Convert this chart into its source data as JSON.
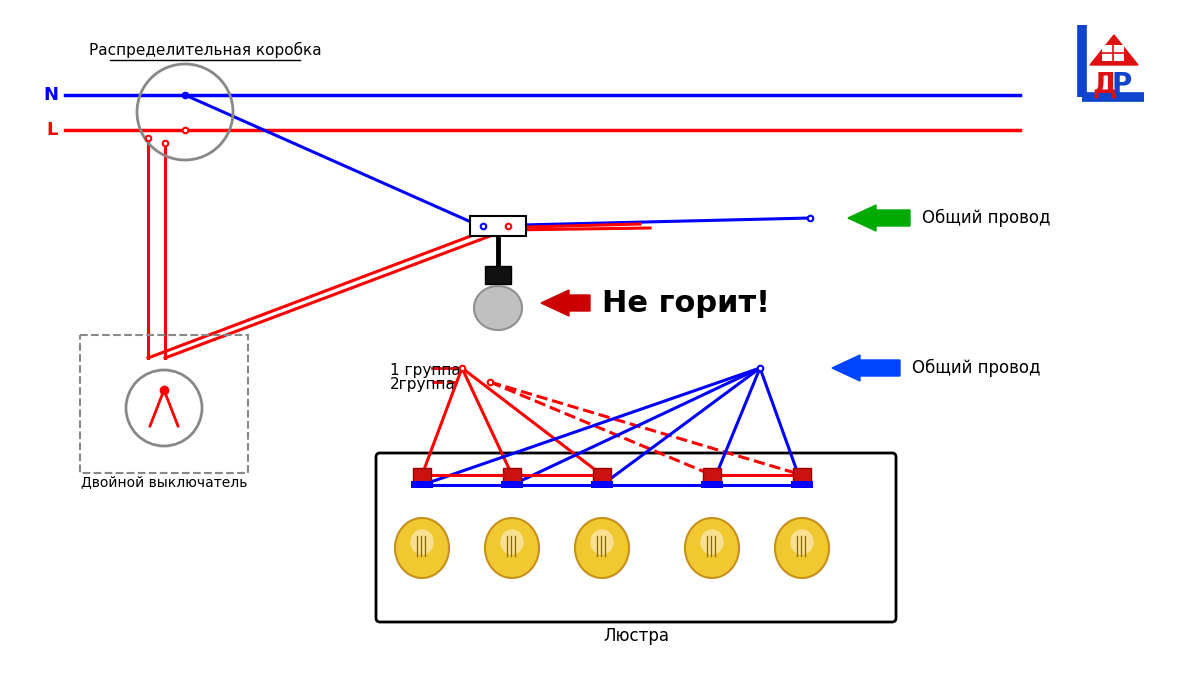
{
  "bg": "#ffffff",
  "blue": "#0000ff",
  "red": "#ff0000",
  "black": "#000000",
  "gray": "#888888",
  "green_arrow": "#00aa00",
  "blue_arrow": "#0044ff",
  "red_arrow": "#cc0000",
  "yellow_bulb": "#f0c830",
  "orange_bulb": "#c89020",
  "label_box": "Распределительная коробка",
  "label_N": "N",
  "label_L": "L",
  "label_switch": "Двойной выключатель",
  "label_chandelier": "Люстра",
  "label_group1": "1 группа",
  "label_group2": "2группа",
  "label_common1": "Общий провод",
  "label_common2": "Общий провод",
  "label_not_burning": "Не горит!"
}
